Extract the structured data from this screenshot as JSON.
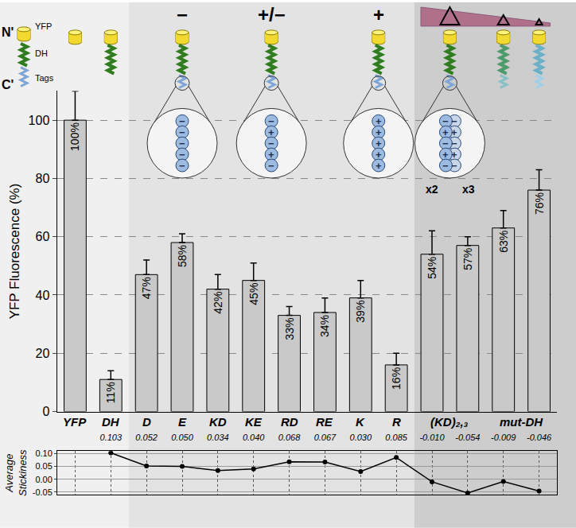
{
  "chart_data": {
    "type": "bar",
    "categories": [
      "YFP",
      "DH",
      "D",
      "E",
      "KD",
      "KE",
      "RD",
      "RE",
      "K",
      "R",
      "(KD)₂,₃",
      null,
      "mut-DH",
      null
    ],
    "values": [
      100,
      11,
      47,
      58,
      42,
      45,
      33,
      34,
      39,
      16,
      54,
      57,
      63,
      76
    ],
    "value_labels": [
      "100%",
      "11%",
      "47%",
      "58%",
      "42%",
      "45%",
      "33%",
      "34%",
      "39%",
      "16%",
      "54%",
      "57%",
      "63%",
      "76%"
    ],
    "errors": [
      10,
      3,
      5,
      3,
      5,
      6,
      3,
      5,
      6,
      4,
      8,
      3,
      6,
      7
    ],
    "color": "#c9c9c9",
    "data_labels": true,
    "grid": true,
    "ylim": [
      0,
      110
    ],
    "yticks": [
      0,
      20,
      40,
      60,
      80,
      100
    ],
    "y_label": "YFP Fluorescence (%)",
    "stickiness": {
      "title": "Average Stickiness",
      "type": "line",
      "marker": "circle",
      "color": "#000000",
      "values": [
        null,
        0.103,
        0.052,
        0.05,
        0.034,
        0.04,
        0.068,
        0.067,
        0.03,
        0.085,
        -0.01,
        -0.054,
        -0.009,
        -0.046
      ],
      "value_labels": [
        null,
        "0.103",
        "0.052",
        "0.050",
        "0.034",
        "0.040",
        "0.068",
        "0.067",
        "0.030",
        "0.085",
        "-0.010",
        "-0.054",
        "-0.009",
        "-0.046"
      ],
      "y2lim": [
        -0.06,
        0.11
      ],
      "y2ticks": [
        {
          "value": -0.05,
          "label": "-0.05"
        },
        {
          "value": 0,
          "label": "0.00"
        },
        {
          "value": 0.05,
          "label": "0.05"
        },
        {
          "value": 0.1,
          "label": "0.10"
        }
      ]
    },
    "schematic": {
      "termini": [
        "N'",
        "C'"
      ],
      "parts": [
        "YFP",
        "DH",
        "Tags"
      ],
      "groups": [
        {
          "sign": "−",
          "beads": [
            "−",
            "−",
            "−",
            "−",
            "−"
          ]
        },
        {
          "sign": "+/−",
          "beads": [
            "−",
            "+",
            "−",
            "+",
            "−"
          ]
        },
        {
          "sign": "+",
          "beads": [
            "+",
            "+",
            "+",
            "+",
            "+"
          ]
        }
      ],
      "multimer": {
        "beads": [
          "−",
          "+",
          "−",
          "+",
          "−"
        ],
        "copies": [
          "x2",
          "x3"
        ]
      }
    }
  }
}
